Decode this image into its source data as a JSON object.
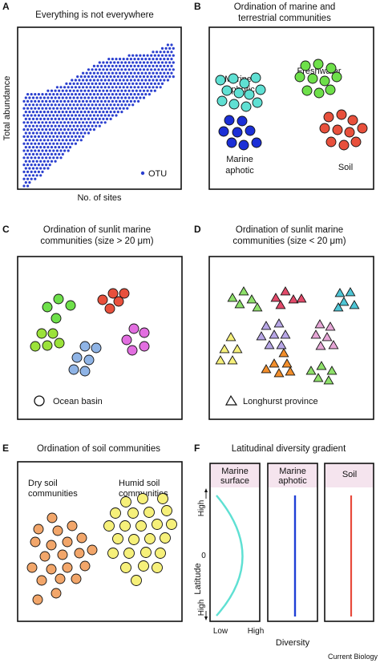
{
  "footer": "Current Biology",
  "colors": {
    "blue_dot": "#2a3fcf",
    "cyan": "#5fe0d3",
    "navy": "#1b2fd6",
    "green": "#6ee04a",
    "red": "#e8503c",
    "lime": "#9be23a",
    "skyblue": "#8fb4e6",
    "magenta": "#e26ee0",
    "pink": "#e24a6a",
    "teal": "#4ec6d6",
    "lavender": "#b7a6e6",
    "lightpink": "#e6a6d6",
    "orange": "#f28e2b",
    "yellow": "#f2e24a",
    "lightgreen": "#8ee06a",
    "salmon": "#f2a66a",
    "paleyellow": "#f6f07a",
    "curve_cyan": "#5fe0d3",
    "line_blue": "#1f3fd6",
    "line_red": "#e84a3c",
    "header_band": "#f5e4ee"
  },
  "panelA": {
    "letter": "A",
    "title": "Everything is not everywhere",
    "ylabel": "Total abundance",
    "xlabel": "No. of sites",
    "legend": "OTU"
  },
  "panelB": {
    "letter": "B",
    "title_line1": "Ordination of marine and",
    "title_line2": "terrestrial communities",
    "labels": {
      "euphotic1": "Marine",
      "euphotic2": "euphotic",
      "freshwater": "Freshwater",
      "aphotic1": "Marine",
      "aphotic2": "aphotic",
      "soil": "Soil"
    }
  },
  "panelC": {
    "letter": "C",
    "title_line1": "Ordination of sunlit marine",
    "title_line2": "communities (size > 20 μm)",
    "legend": "Ocean basin"
  },
  "panelD": {
    "letter": "D",
    "title_line1": "Ordination of sunlit marine",
    "title_line2": "communities (size < 20 μm)",
    "legend": "Longhurst province"
  },
  "panelE": {
    "letter": "E",
    "title": "Ordination of soil communities",
    "dry1": "Dry soil",
    "dry2": "communities",
    "humid1": "Humid soil",
    "humid2": "communities"
  },
  "panelF": {
    "letter": "F",
    "title": "Latitudinal diversity gradient",
    "col1_line1": "Marine",
    "col1_line2": "surface",
    "col2_line1": "Marine",
    "col2_line2": "aphotic",
    "col3": "Soil",
    "ylabel": "Latitude",
    "y_high_top": "High",
    "y_zero": "0",
    "y_high_bottom": "High",
    "x_low": "Low",
    "x_high": "High",
    "xlabel": "Diversity"
  }
}
